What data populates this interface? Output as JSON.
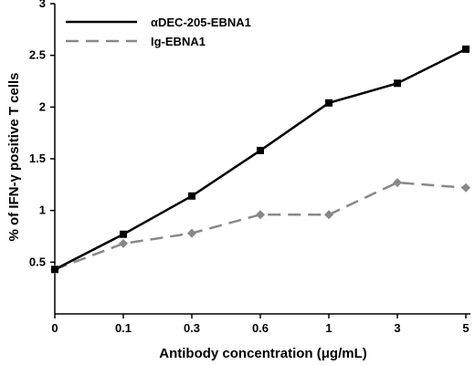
{
  "chart_data": {
    "type": "line",
    "title": "",
    "xlabel": "Antibody concentration (μg/mL)",
    "ylabel": "% of IFN-γ positive T cells",
    "categories": [
      "0",
      "0.1",
      "0.3",
      "0.6",
      "1",
      "3",
      "5"
    ],
    "ylim": [
      0,
      3
    ],
    "yticks": [
      "0.5",
      "1",
      "1.5",
      "2",
      "2.5",
      "3"
    ],
    "grid": false,
    "legend_position": "top-left",
    "series": [
      {
        "name": "αDEC-205-EBNA1",
        "values": [
          0.43,
          0.77,
          1.14,
          1.58,
          2.04,
          2.23,
          2.56
        ],
        "color": "#000000",
        "style": "solid",
        "marker": "square"
      },
      {
        "name": "Ig-EBNA1",
        "values": [
          0.43,
          0.68,
          0.78,
          0.96,
          0.96,
          1.27,
          1.22
        ],
        "color": "#888888",
        "style": "dashed",
        "marker": "diamond"
      }
    ]
  }
}
